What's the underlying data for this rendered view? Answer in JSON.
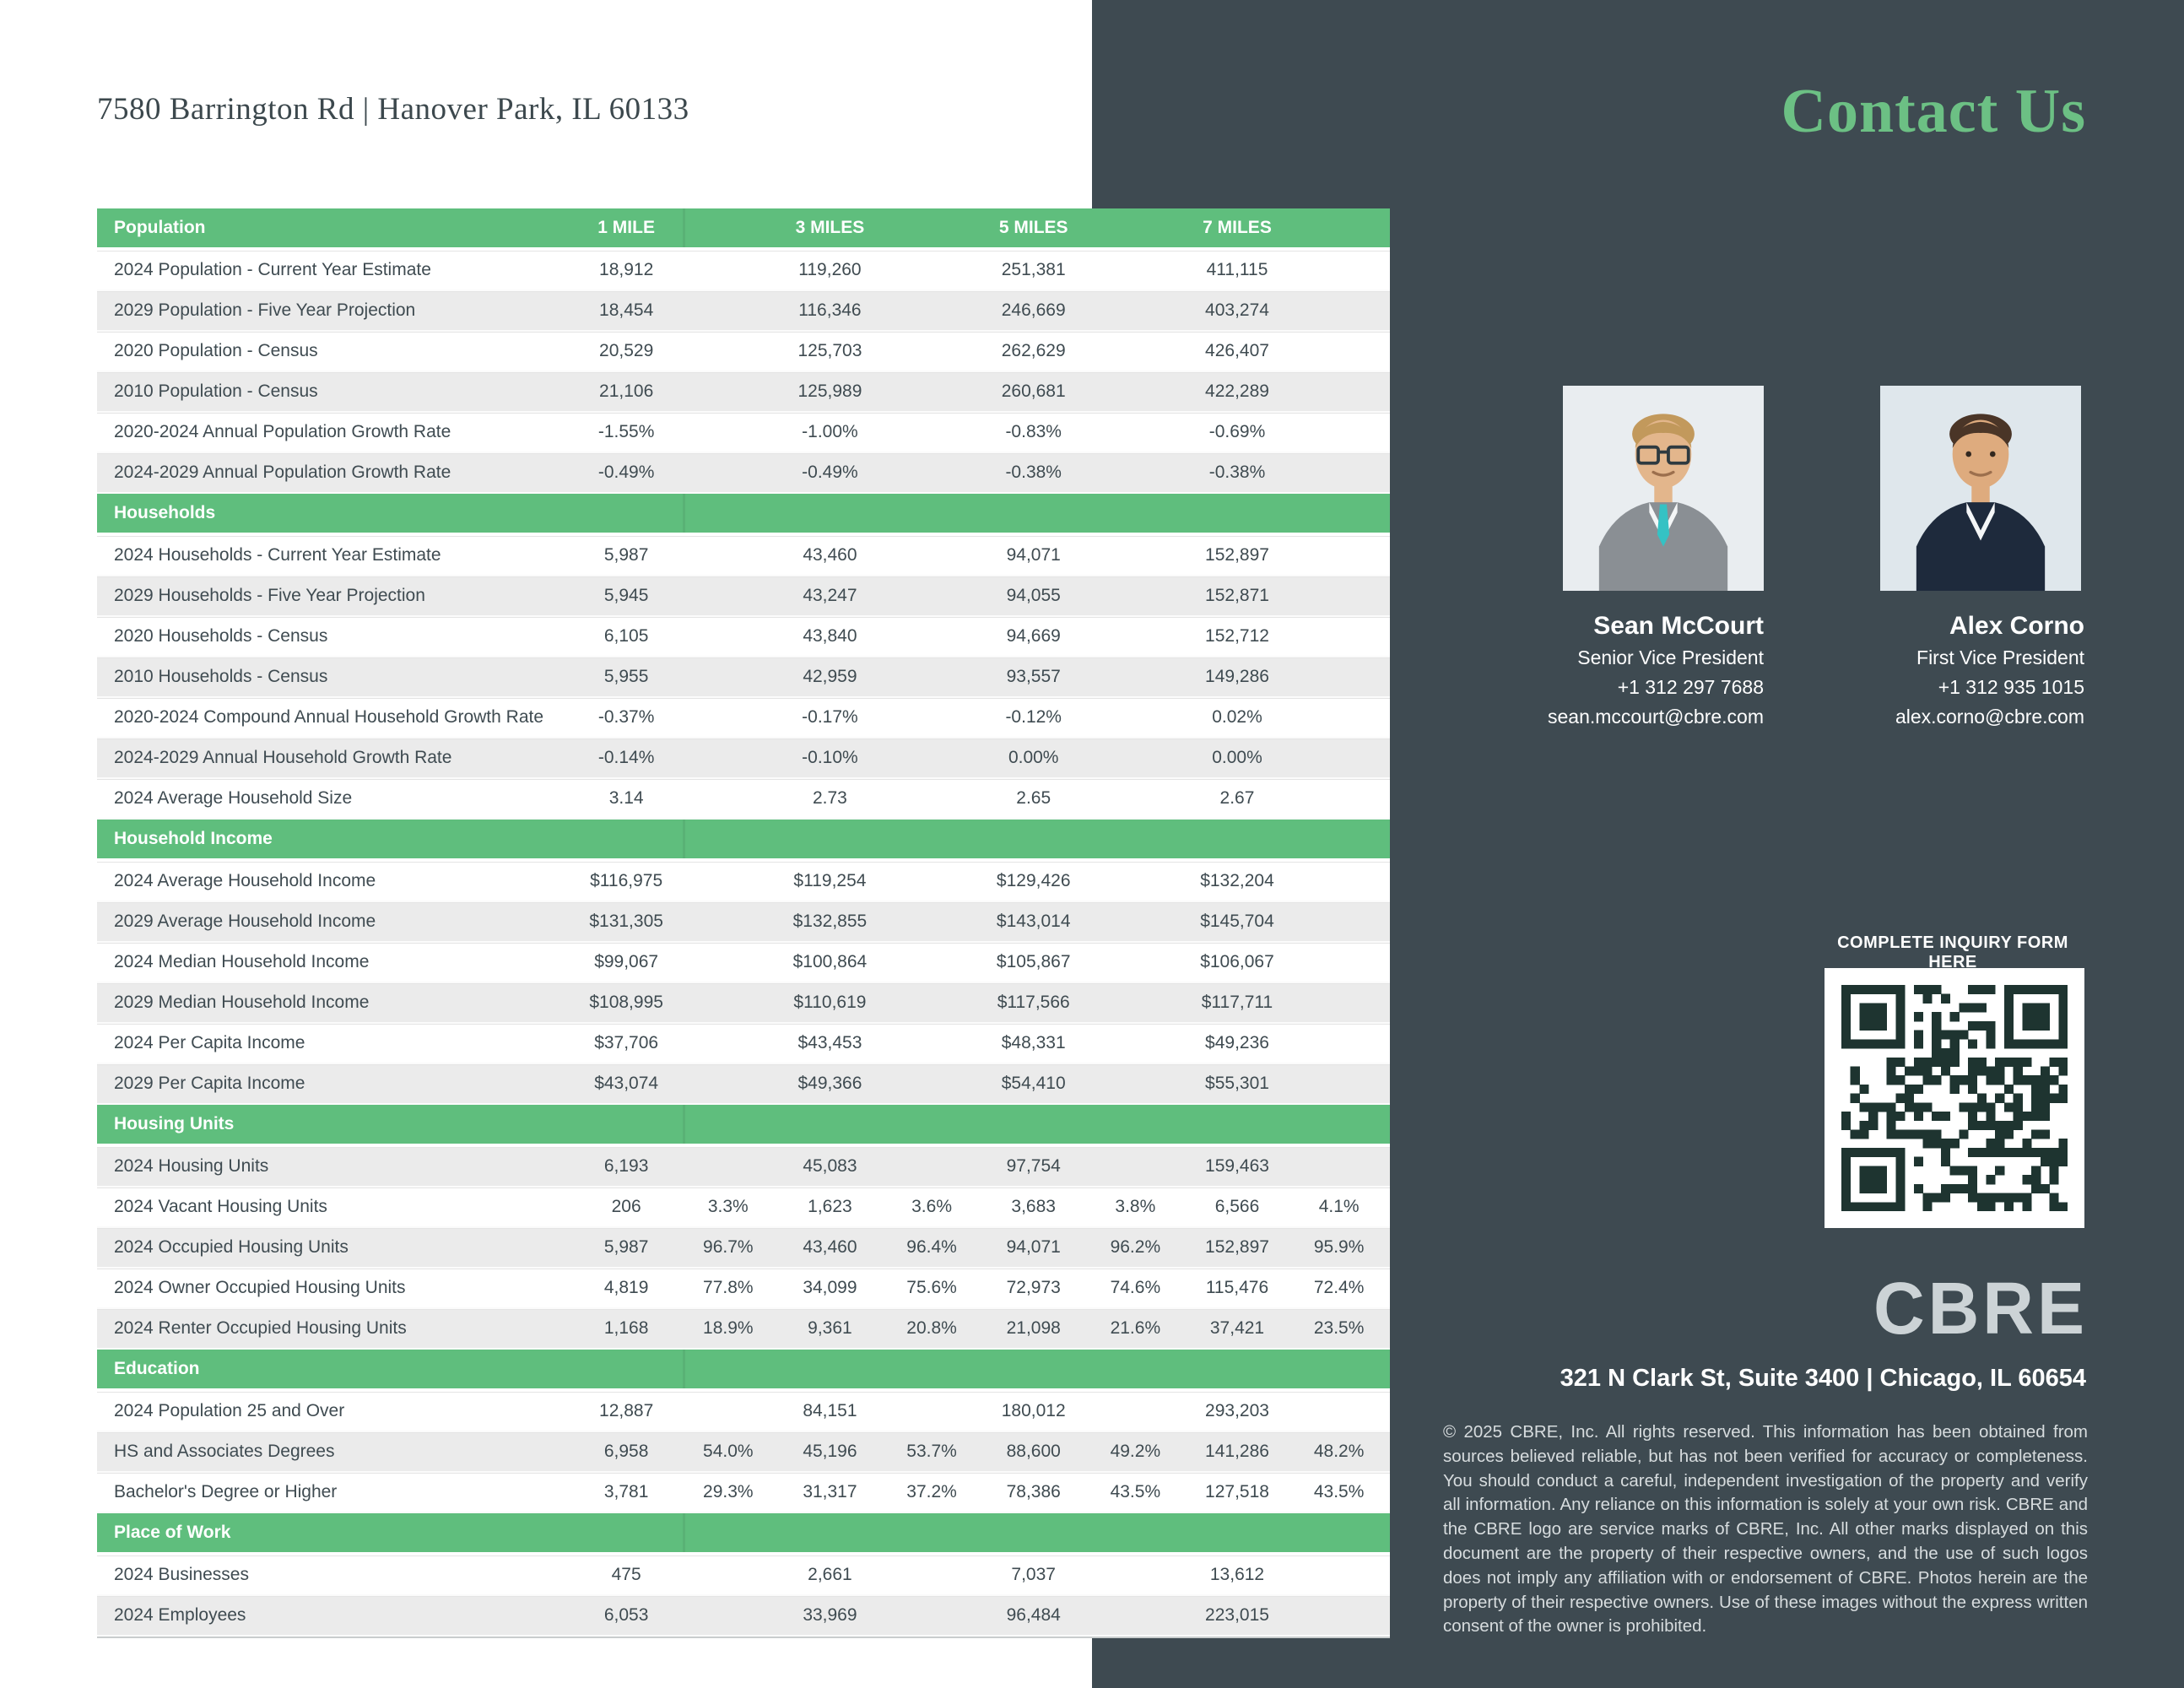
{
  "colors": {
    "green": "#5FBE7D",
    "title_green": "#6CC084",
    "panel": "#3E4A51",
    "row_alt": "#EBEBEB",
    "text_dark": "#3F4B51",
    "qr_dark": "#1E3430",
    "logo_gray": "#CCD3D6"
  },
  "header": {
    "address_title": "7580 Barrington Rd | Hanover Park, IL 60133"
  },
  "sidebar": {
    "title": "Contact Us",
    "inquiry_heading": "COMPLETE INQUIRY FORM HERE",
    "qr_icon": "qr-code",
    "logo_text": "CBRE",
    "office_address": "321 N Clark St, Suite 3400 | Chicago, IL 60654",
    "disclaimer": "© 2025 CBRE, Inc. All rights reserved. This information has been obtained from sources believed reliable, but has not been verified for accuracy or completeness. You should conduct a careful, independent investigation of the property and verify all information. Any reliance on this information is solely at your own risk. CBRE and the CBRE logo are service marks of CBRE, Inc. All other marks displayed on this document are the property of their respective owners, and the use of such logos does not imply any affiliation with or endorsement of CBRE. Photos herein are the property of their respective owners. Use of these images without the express written consent of the owner is prohibited."
  },
  "contacts": [
    {
      "name": "Sean McCourt",
      "title": "Senior Vice President",
      "phone": "+1 312 297 7688",
      "email": "sean.mccourt@cbre.com",
      "photo": {
        "bg": "#E9EDF0",
        "hair": "#C2995C",
        "skin": "#E3B68C",
        "suit": "#8A8F94",
        "shirt": "#F4F6F7",
        "tie": "#35C2C4",
        "glasses": true
      }
    },
    {
      "name": "Alex Corno",
      "title": "First Vice President",
      "phone": "+1 312 935 1015",
      "email": "alex.corno@cbre.com",
      "photo": {
        "bg": "#DFE7EC",
        "hair": "#4A3527",
        "skin": "#DEAB7E",
        "suit": "#1E2A3C",
        "shirt": "#F4F6F7",
        "tie": "",
        "glasses": false
      }
    }
  ],
  "table": {
    "columns": [
      "1 MILE",
      "3 MILES",
      "5 MILES",
      "7 MILES"
    ],
    "sections": [
      {
        "label": "Population",
        "rows": [
          {
            "label": "2024 Population - Current Year Estimate",
            "values": [
              "18,912",
              "",
              "119,260",
              "",
              "251,381",
              "",
              "411,115",
              ""
            ]
          },
          {
            "label": "2029 Population -  Five Year Projection",
            "values": [
              "18,454",
              "",
              "116,346",
              "",
              "246,669",
              "",
              "403,274",
              ""
            ]
          },
          {
            "label": "2020 Population - Census",
            "values": [
              "20,529",
              "",
              "125,703",
              "",
              "262,629",
              "",
              "426,407",
              ""
            ]
          },
          {
            "label": "2010 Population - Census",
            "values": [
              "21,106",
              "",
              "125,989",
              "",
              "260,681",
              "",
              "422,289",
              ""
            ]
          },
          {
            "label": "2020-2024 Annual Population Growth Rate",
            "values": [
              "-1.55%",
              "",
              "-1.00%",
              "",
              "-0.83%",
              "",
              "-0.69%",
              ""
            ]
          },
          {
            "label": "2024-2029 Annual Population Growth Rate",
            "values": [
              "-0.49%",
              "",
              "-0.49%",
              "",
              "-0.38%",
              "",
              "-0.38%",
              ""
            ]
          }
        ]
      },
      {
        "label": "Households",
        "rows": [
          {
            "label": "2024 Households - Current Year Estimate",
            "values": [
              "5,987",
              "",
              "43,460",
              "",
              "94,071",
              "",
              "152,897",
              ""
            ]
          },
          {
            "label": "2029 Households -  Five Year Projection",
            "values": [
              "5,945",
              "",
              "43,247",
              "",
              "94,055",
              "",
              "152,871",
              ""
            ]
          },
          {
            "label": "2020 Households - Census",
            "values": [
              "6,105",
              "",
              "43,840",
              "",
              "94,669",
              "",
              "152,712",
              ""
            ]
          },
          {
            "label": "2010 Households - Census",
            "values": [
              "5,955",
              "",
              "42,959",
              "",
              "93,557",
              "",
              "149,286",
              ""
            ]
          },
          {
            "label": "2020-2024 Compound Annual Household Growth Rate",
            "values": [
              "-0.37%",
              "",
              "-0.17%",
              "",
              "-0.12%",
              "",
              "0.02%",
              ""
            ]
          },
          {
            "label": "2024-2029 Annual Household Growth Rate",
            "values": [
              "-0.14%",
              "",
              "-0.10%",
              "",
              "0.00%",
              "",
              "0.00%",
              ""
            ]
          },
          {
            "label": "2024 Average Household Size",
            "values": [
              "3.14",
              "",
              "2.73",
              "",
              "2.65",
              "",
              "2.67",
              ""
            ]
          }
        ]
      },
      {
        "label": "Household Income",
        "rows": [
          {
            "label": "2024 Average Household Income",
            "values": [
              "$116,975",
              "",
              "$119,254",
              "",
              "$129,426",
              "",
              "$132,204",
              ""
            ]
          },
          {
            "label": "2029 Average Household Income",
            "values": [
              "$131,305",
              "",
              "$132,855",
              "",
              "$143,014",
              "",
              "$145,704",
              ""
            ]
          },
          {
            "label": "2024 Median Household Income",
            "values": [
              "$99,067",
              "",
              "$100,864",
              "",
              "$105,867",
              "",
              "$106,067",
              ""
            ]
          },
          {
            "label": "2029 Median Household Income",
            "values": [
              "$108,995",
              "",
              "$110,619",
              "",
              "$117,566",
              "",
              "$117,711",
              ""
            ]
          },
          {
            "label": "2024 Per Capita Income",
            "values": [
              "$37,706",
              "",
              "$43,453",
              "",
              "$48,331",
              "",
              "$49,236",
              ""
            ]
          },
          {
            "label": "2029 Per Capita Income",
            "values": [
              "$43,074",
              "",
              "$49,366",
              "",
              "$54,410",
              "",
              "$55,301",
              ""
            ]
          }
        ]
      },
      {
        "label": "Housing Units",
        "alt_start": true,
        "rows": [
          {
            "label": "2024 Housing Units",
            "values": [
              "6,193",
              "",
              "45,083",
              "",
              "97,754",
              "",
              "159,463",
              ""
            ]
          },
          {
            "label": "2024 Vacant Housing Units",
            "values": [
              "206",
              "3.3%",
              "1,623",
              "3.6%",
              "3,683",
              "3.8%",
              "6,566",
              "4.1%"
            ]
          },
          {
            "label": "2024 Occupied Housing Units",
            "values": [
              "5,987",
              "96.7%",
              "43,460",
              "96.4%",
              "94,071",
              "96.2%",
              "152,897",
              "95.9%"
            ]
          },
          {
            "label": "2024 Owner Occupied Housing Units",
            "values": [
              "4,819",
              "77.8%",
              "34,099",
              "75.6%",
              "72,973",
              "74.6%",
              "115,476",
              "72.4%"
            ]
          },
          {
            "label": "2024 Renter Occupied Housing Units",
            "values": [
              "1,168",
              "18.9%",
              "9,361",
              "20.8%",
              "21,098",
              "21.6%",
              "37,421",
              "23.5%"
            ]
          }
        ]
      },
      {
        "label": "Education",
        "rows": [
          {
            "label": "2024 Population 25 and Over",
            "values": [
              "12,887",
              "",
              "84,151",
              "",
              "180,012",
              "",
              "293,203",
              ""
            ]
          },
          {
            "label": "HS and Associates Degrees",
            "values": [
              "6,958",
              "54.0%",
              "45,196",
              "53.7%",
              "88,600",
              "49.2%",
              "141,286",
              "48.2%"
            ]
          },
          {
            "label": "Bachelor's Degree or Higher",
            "values": [
              "3,781",
              "29.3%",
              "31,317",
              "37.2%",
              "78,386",
              "43.5%",
              "127,518",
              "43.5%"
            ]
          }
        ]
      },
      {
        "label": "Place of Work",
        "rows": [
          {
            "label": "2024 Businesses",
            "values": [
              "475",
              "",
              "2,661",
              "",
              "7,037",
              "",
              "13,612",
              ""
            ]
          },
          {
            "label": "2024 Employees",
            "values": [
              "6,053",
              "",
              "33,969",
              "",
              "96,484",
              "",
              "223,015",
              ""
            ]
          }
        ]
      }
    ]
  }
}
